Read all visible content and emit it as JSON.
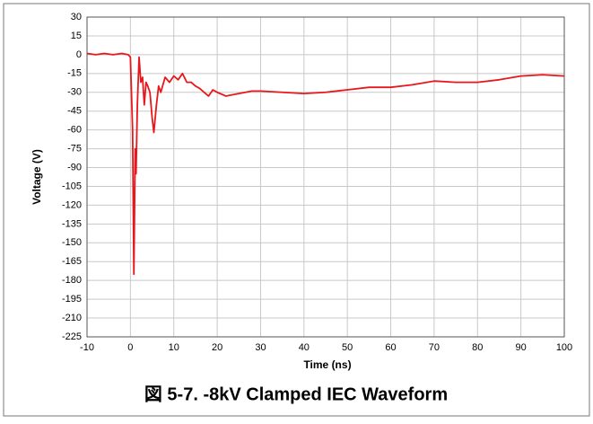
{
  "chart_data": {
    "type": "line",
    "title": "図 5-7. -8kV Clamped IEC Waveform",
    "x_label": "Time (ns)",
    "y_label": "Voltage (V)",
    "xlim": [
      -10,
      100
    ],
    "ylim": [
      -225,
      30
    ],
    "xticks": [
      -10,
      0,
      10,
      20,
      30,
      40,
      50,
      60,
      70,
      80,
      90,
      100
    ],
    "yticks": [
      30,
      15,
      0,
      -15,
      -30,
      -45,
      -60,
      -75,
      -90,
      -105,
      -120,
      -135,
      -150,
      -165,
      -180,
      -195,
      -210,
      -225
    ],
    "grid": true,
    "x": [
      -10,
      -8,
      -6,
      -4,
      -2,
      -0.5,
      0,
      0.5,
      0.8,
      1.1,
      1.3,
      1.6,
      2,
      2.4,
      2.8,
      3.2,
      3.6,
      4,
      4.5,
      5,
      5.4,
      6,
      6.5,
      7,
      8,
      9,
      10,
      11,
      12,
      13,
      14,
      15,
      16,
      17,
      18,
      19,
      20,
      22,
      25,
      28,
      30,
      35,
      40,
      45,
      50,
      55,
      60,
      65,
      70,
      75,
      80,
      85,
      90,
      95,
      100
    ],
    "series": [
      {
        "name": "Voltage",
        "color": "#e8171c",
        "values": [
          1,
          0,
          1,
          0,
          1,
          0,
          -2,
          -60,
          -175,
          -75,
          -95,
          -40,
          -2,
          -22,
          -18,
          -40,
          -22,
          -25,
          -30,
          -50,
          -62,
          -40,
          -25,
          -30,
          -18,
          -22,
          -17,
          -20,
          -15,
          -22,
          -22,
          -25,
          -27,
          -30,
          -33,
          -28,
          -30,
          -33,
          -31,
          -29,
          -29,
          -30,
          -31,
          -30,
          -28,
          -26,
          -26,
          -24,
          -21,
          -22,
          -22,
          -20,
          -17,
          -16,
          -17
        ]
      }
    ]
  }
}
